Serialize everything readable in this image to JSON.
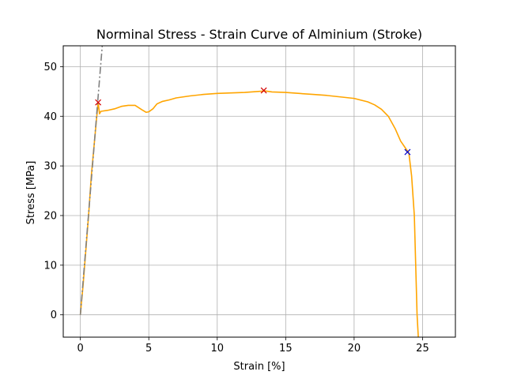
{
  "chart_data": {
    "type": "line",
    "title": "Norminal Stress - Strain Curve of Alminium (Stroke)",
    "xlabel": "Strain [%]",
    "ylabel": "Stress [MPa]",
    "xlim": [
      -1.25,
      27.4
    ],
    "ylim": [
      -4.5,
      54.2
    ],
    "xticks": [
      0,
      5,
      10,
      15,
      20,
      25
    ],
    "yticks": [
      0,
      10,
      20,
      30,
      40,
      50
    ],
    "xtick_labels": [
      "0",
      "5",
      "10",
      "15",
      "20",
      "25"
    ],
    "ytick_labels": [
      "0",
      "10",
      "20",
      "30",
      "40",
      "50"
    ],
    "grid": true,
    "legend": "none",
    "series": [
      {
        "color": "#ffa500",
        "style": "solid",
        "x": [
          0.0,
          0.2,
          0.4,
          0.6,
          0.8,
          1.0,
          1.2,
          1.3,
          1.4,
          1.5,
          2.0,
          2.5,
          3.0,
          3.5,
          4.0,
          4.5,
          4.8,
          5.0,
          5.3,
          5.6,
          6.0,
          6.5,
          7.0,
          8.0,
          9.0,
          10.0,
          11.0,
          12.0,
          13.0,
          13.5,
          14.0,
          15.0,
          16.0,
          17.0,
          18.0,
          19.0,
          20.0,
          21.0,
          21.5,
          22.0,
          22.5,
          23.0,
          23.4,
          23.7,
          24.0,
          24.2,
          24.4,
          24.5,
          24.6,
          24.7
        ],
        "y": [
          0.0,
          6.0,
          13.0,
          20.0,
          28.0,
          34.0,
          40.0,
          42.8,
          40.5,
          41.0,
          41.2,
          41.5,
          42.0,
          42.2,
          42.2,
          41.3,
          40.8,
          40.9,
          41.5,
          42.5,
          43.0,
          43.3,
          43.7,
          44.1,
          44.4,
          44.6,
          44.7,
          44.8,
          45.0,
          45.1,
          44.9,
          44.8,
          44.6,
          44.4,
          44.2,
          43.9,
          43.6,
          42.9,
          42.3,
          41.4,
          40.0,
          37.5,
          35.0,
          33.8,
          32.6,
          28.0,
          20.0,
          10.0,
          0.0,
          -5.0
        ]
      },
      {
        "color": "#808080",
        "style": "dashdot",
        "x": [
          0.0,
          1.6
        ],
        "y": [
          0.0,
          54.2
        ]
      }
    ],
    "markers": [
      {
        "x": 1.3,
        "y": 42.8,
        "color": "#d40000",
        "symbol": "x"
      },
      {
        "x": 13.4,
        "y": 45.2,
        "color": "#d40000",
        "symbol": "x"
      },
      {
        "x": 23.9,
        "y": 32.8,
        "color": "#0000cc",
        "symbol": "x"
      }
    ]
  }
}
